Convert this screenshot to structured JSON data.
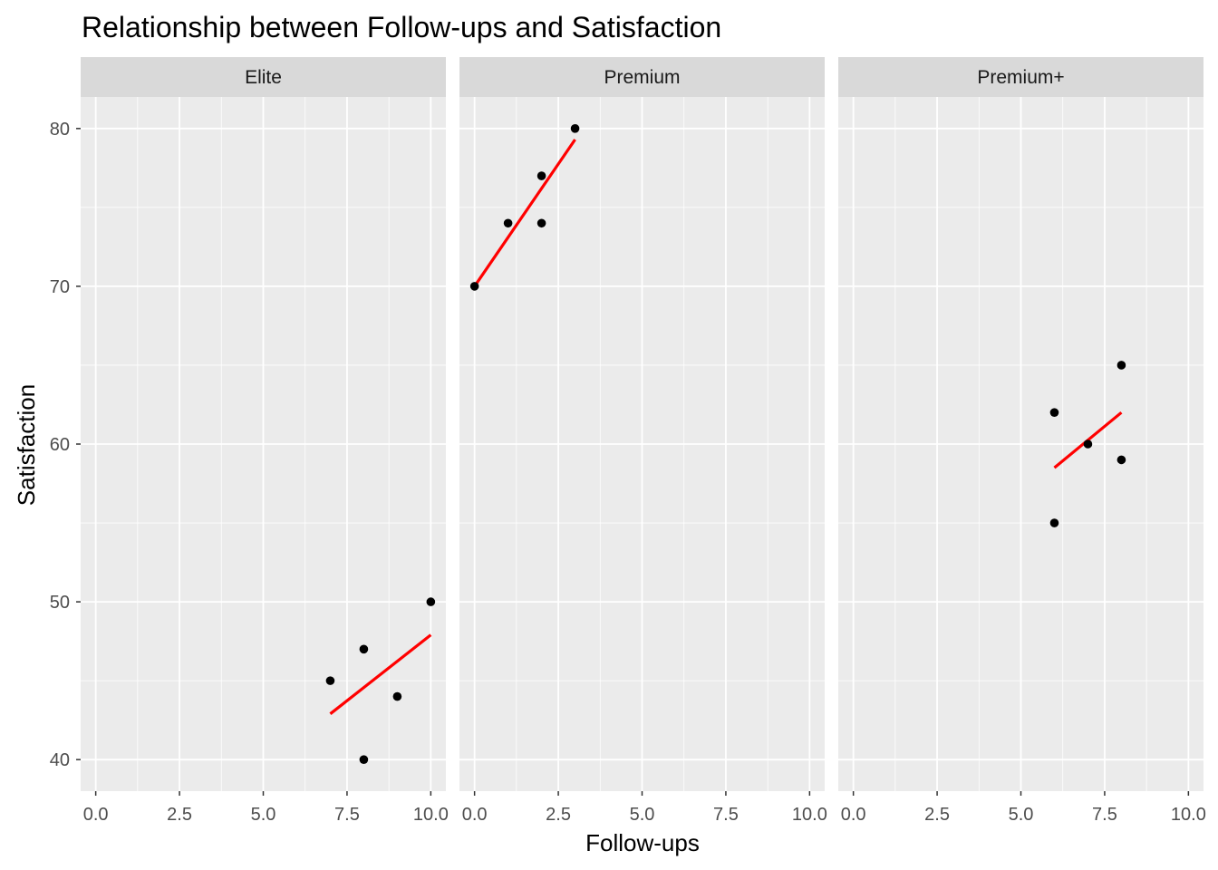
{
  "chart_data": {
    "type": "scatter",
    "title": "Relationship between Follow-ups and Satisfaction",
    "xlabel": "Follow-ups",
    "ylabel": "Satisfaction",
    "xlim": [
      -0.45,
      10.45
    ],
    "ylim": [
      38,
      82
    ],
    "x_ticks": [
      0,
      2.5,
      5,
      7.5,
      10
    ],
    "x_tick_labels": [
      "0.0",
      "2.5",
      "5.0",
      "7.5",
      "10.0"
    ],
    "y_ticks": [
      40,
      50,
      60,
      70,
      80
    ],
    "y_tick_labels": [
      "40",
      "50",
      "60",
      "70",
      "80"
    ],
    "grid": true,
    "background": "#ebebeb",
    "strip_background": "#d9d9d9",
    "point_color": "#000000",
    "line_color": "#ff0000",
    "panels": [
      {
        "name": "Elite",
        "points": [
          {
            "x": 7,
            "y": 45
          },
          {
            "x": 8,
            "y": 47
          },
          {
            "x": 8,
            "y": 40
          },
          {
            "x": 9,
            "y": 44
          },
          {
            "x": 10,
            "y": 50
          }
        ],
        "fit_line": {
          "x": [
            7,
            10
          ],
          "y": [
            42.9,
            47.9
          ]
        }
      },
      {
        "name": "Premium",
        "points": [
          {
            "x": 0,
            "y": 70
          },
          {
            "x": 1,
            "y": 74
          },
          {
            "x": 2,
            "y": 77
          },
          {
            "x": 2,
            "y": 74
          },
          {
            "x": 3,
            "y": 80
          }
        ],
        "fit_line": {
          "x": [
            0,
            3
          ],
          "y": [
            70.0,
            79.3
          ]
        }
      },
      {
        "name": "Premium+",
        "points": [
          {
            "x": 6,
            "y": 62
          },
          {
            "x": 6,
            "y": 55
          },
          {
            "x": 7,
            "y": 60
          },
          {
            "x": 8,
            "y": 65
          },
          {
            "x": 8,
            "y": 59
          }
        ],
        "fit_line": {
          "x": [
            6,
            8
          ],
          "y": [
            58.5,
            62.0
          ]
        }
      }
    ]
  }
}
